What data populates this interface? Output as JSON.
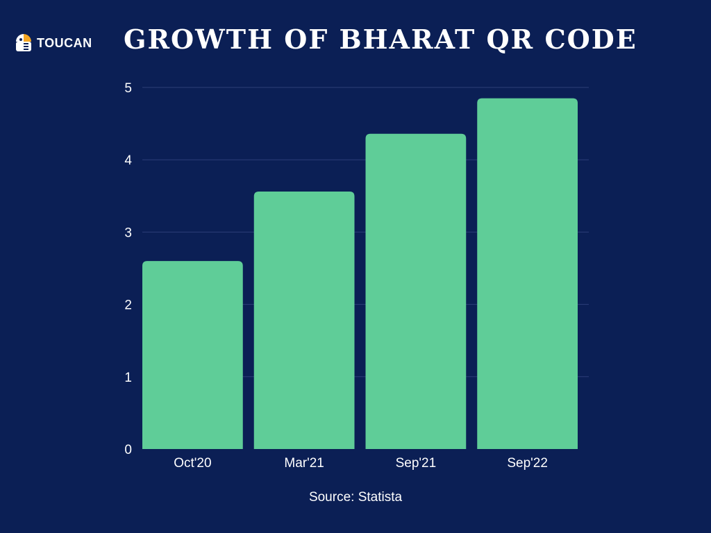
{
  "brand": {
    "name": "TOUCAN",
    "logo_icon": "toucan-logo-icon"
  },
  "chart_data": {
    "type": "bar",
    "title": "GROWTH OF BHARAT QR CODE",
    "categories": [
      "Oct'20",
      "Mar'21",
      "Sep'21",
      "Sep'22"
    ],
    "values": [
      2.6,
      3.56,
      4.36,
      4.85
    ],
    "xlabel": "",
    "ylabel": "",
    "ylim": [
      0,
      5
    ],
    "yticks": [
      "0",
      "1",
      "2",
      "3",
      "4",
      "5"
    ],
    "grid": true,
    "bar_color": "#5fcd98",
    "background_color": "#0b1f55",
    "gridline_color": "#2c3f78"
  },
  "source": "Source: Statista"
}
